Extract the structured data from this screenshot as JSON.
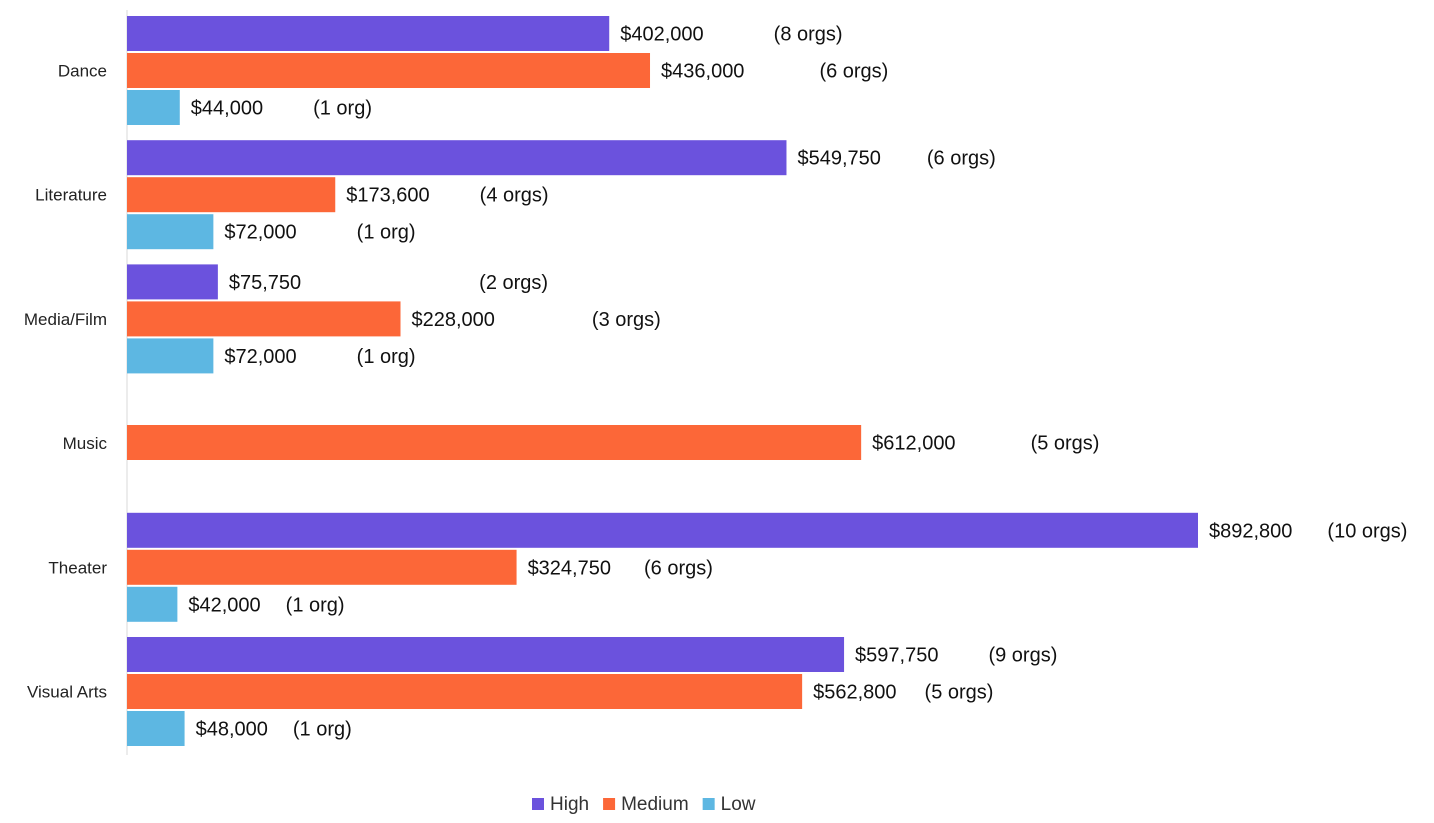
{
  "chart_data": {
    "type": "bar",
    "orientation": "horizontal",
    "categories": [
      "Dance",
      "Literature",
      "Media/Film",
      "Music",
      "Theater",
      "Visual Arts"
    ],
    "series": [
      {
        "name": "High",
        "color": "#6b52dd",
        "values": [
          402000,
          549750,
          75750,
          null,
          892800,
          597750
        ],
        "value_labels": [
          "$402,000",
          "$549,750",
          "$75,750",
          "",
          "$892,800",
          "$597,750"
        ],
        "count_labels": [
          "(8 orgs)",
          "(6 orgs)",
          "(2 orgs)",
          "",
          "(10 orgs)",
          "(9 orgs)"
        ]
      },
      {
        "name": "Medium",
        "color": "#fc6738",
        "values": [
          436000,
          173600,
          228000,
          612000,
          324750,
          562800
        ],
        "value_labels": [
          "$436,000",
          "$173,600",
          "$228,000",
          "$612,000",
          "$324,750",
          "$562,800"
        ],
        "count_labels": [
          "(6 orgs)",
          "(4 orgs)",
          "(3 orgs)",
          "(5 orgs)",
          "(6 orgs)",
          "(5 orgs)"
        ]
      },
      {
        "name": "Low",
        "color": "#5db7e2",
        "values": [
          44000,
          72000,
          72000,
          null,
          42000,
          48000
        ],
        "value_labels": [
          "$44,000",
          "$72,000",
          "$72,000",
          "",
          "$42,000",
          "$48,000"
        ],
        "count_labels": [
          "(1 org)",
          "(1 org)",
          "(1 org)",
          "",
          "(1 org)",
          "(1 org)"
        ]
      }
    ],
    "xlim": [
      0,
      900000
    ],
    "grid": false,
    "legend_position": "bottom"
  }
}
